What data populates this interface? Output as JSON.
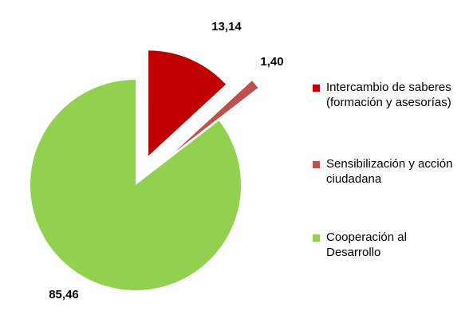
{
  "chart_data": {
    "type": "pie",
    "categories": [
      "Intercambio de saberes (formación y asesorías)",
      "Sensibilización y acción ciudadana",
      "Cooperación al Desarrollo"
    ],
    "values": [
      13.14,
      1.4,
      85.46
    ],
    "data_labels": [
      "13,14",
      "1,40",
      "85,46"
    ],
    "colors": [
      "#c00000",
      "#c0504d",
      "#92d050"
    ],
    "exploded": [
      true,
      true,
      false
    ],
    "legend_position": "right",
    "title": ""
  },
  "legend": [
    {
      "line1": "Intercambio de saberes",
      "line2": "(formación y asesorías)",
      "color": "#c00000"
    },
    {
      "line1": "Sensibilización y acción",
      "line2": "ciudadana",
      "color": "#c0504d"
    },
    {
      "line1": "Cooperación al",
      "line2": "Desarrollo",
      "color": "#92d050"
    }
  ]
}
